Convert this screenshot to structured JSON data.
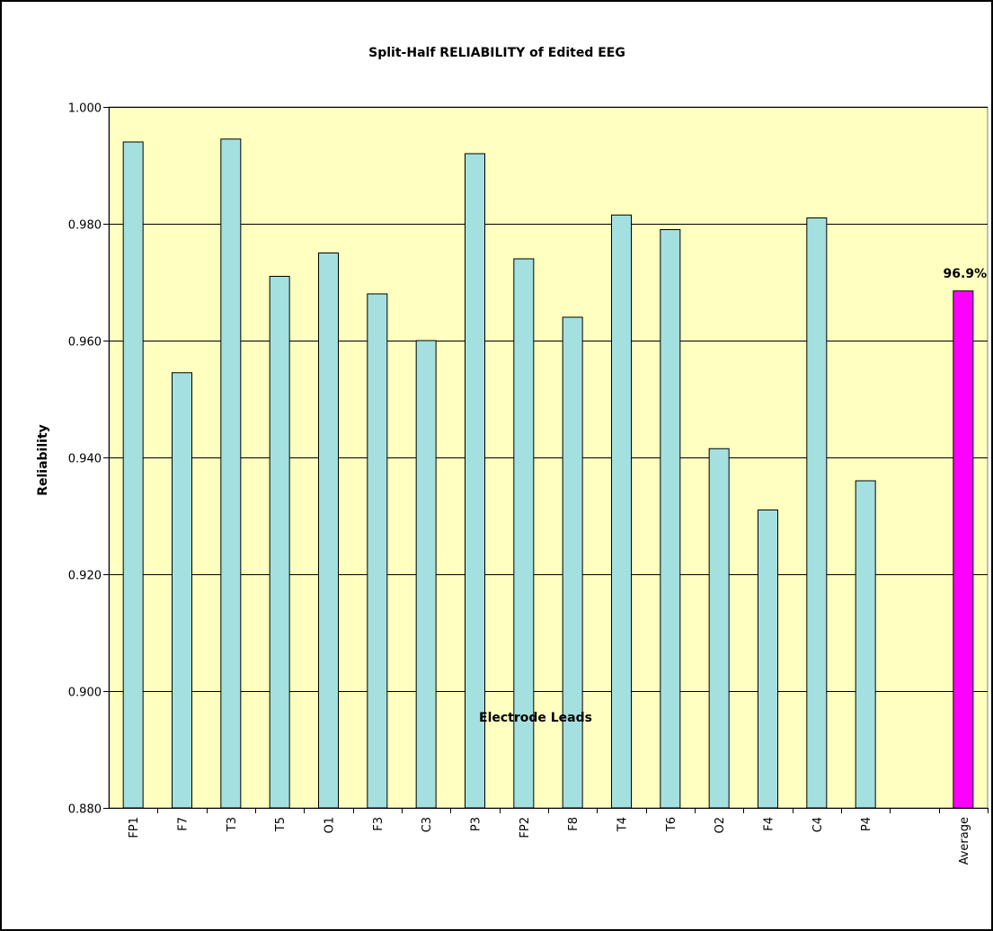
{
  "chart_data": {
    "type": "bar",
    "title": "Split-Half RELIABILITY of Edited EEG",
    "xlabel": "Electrode Leads",
    "ylabel": "Reliability",
    "ylim": [
      0.88,
      1.0
    ],
    "ytick_step": 0.02,
    "ytick_labels": [
      "0.880",
      "0.900",
      "0.920",
      "0.940",
      "0.960",
      "0.980",
      "1.000"
    ],
    "grid": true,
    "legend": "none",
    "categories": [
      "FP1",
      "F7",
      "T3",
      "T5",
      "O1",
      "F3",
      "C3",
      "P3",
      "FP2",
      "F8",
      "T4",
      "T6",
      "O2",
      "F4",
      "C4",
      "P4",
      "",
      "Average"
    ],
    "values": [
      0.994,
      0.9545,
      0.9945,
      0.971,
      0.975,
      0.968,
      0.96,
      0.992,
      0.974,
      0.964,
      0.9815,
      0.979,
      0.9415,
      0.931,
      0.981,
      0.936,
      null,
      0.9685
    ],
    "annotations": [
      {
        "category": "Average",
        "text": "96.9%"
      }
    ],
    "colors": {
      "bar": "#a5e0e0",
      "highlight_bar": "#ff00ff",
      "highlight_category": "Average",
      "plot_background": "#ffffc0",
      "bar_outline": "#000000",
      "gridline": "#000000"
    }
  }
}
